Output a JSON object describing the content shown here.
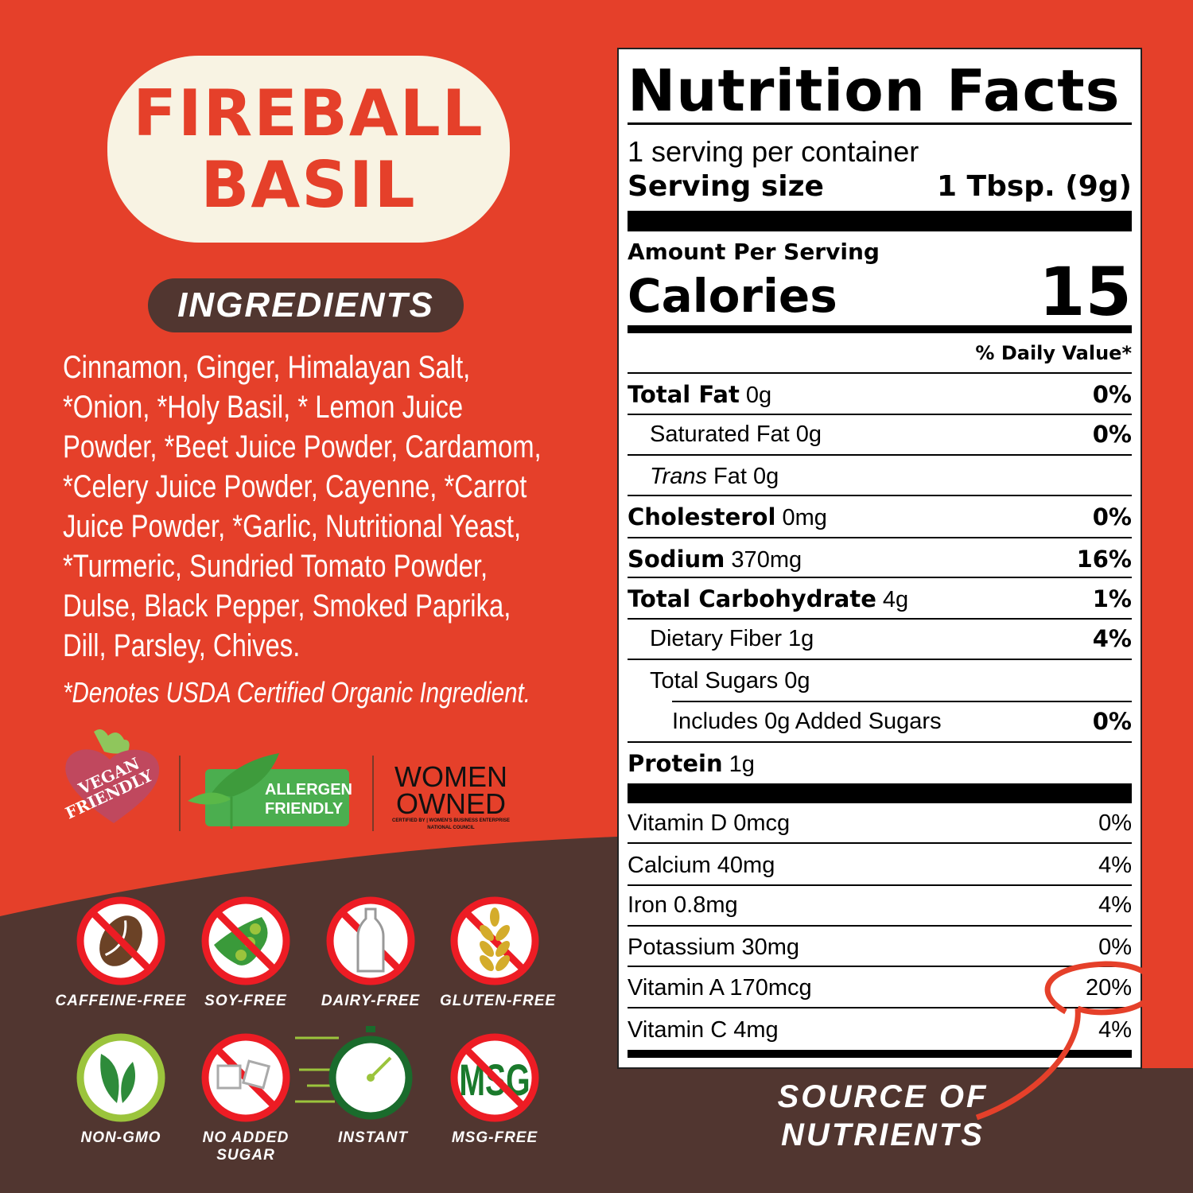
{
  "product": {
    "name_line1": "FIREBALL",
    "name_line2": "BASIL"
  },
  "ingredients": {
    "heading": "INGREDIENTS",
    "lines": [
      "Cinnamon, Ginger, Himalayan Salt,",
      "*Onion, *Holy Basil, * Lemon Juice",
      "Powder, *Beet Juice Powder, Cardamom,",
      "*Celery Juice Powder, Cayenne, *Carrot",
      "Juice Powder, *Garlic, Nutritional Yeast,",
      "*Turmeric, Sundried Tomato Powder,",
      "Dulse, Black Pepper, Smoked Paprika,",
      "Dill, Parsley, Chives."
    ],
    "footnote": "*Denotes USDA Certified Organic Ingredient."
  },
  "certifications": {
    "vegan": "VEGAN FRIENDLY",
    "allergen_line1": "ALLERGEN",
    "allergen_line2": "FRIENDLY",
    "women_line1": "WOMEN",
    "women_line2": "OWNED",
    "women_certified": "CERTIFIED BY | WOMEN'S BUSINESS ENTERPRISE NATIONAL COUNCIL"
  },
  "features": [
    {
      "label": "CAFFEINE-FREE",
      "icon": "coffee-bean-icon"
    },
    {
      "label": "SOY-FREE",
      "icon": "soybean-icon"
    },
    {
      "label": "DAIRY-FREE",
      "icon": "milk-bottle-icon"
    },
    {
      "label": "GLUTEN-FREE",
      "icon": "wheat-icon"
    },
    {
      "label": "NON-GMO",
      "icon": "leaf-icon"
    },
    {
      "label": "NO ADDED SUGAR",
      "icon": "sugar-cube-icon"
    },
    {
      "label": "INSTANT",
      "icon": "stopwatch-icon"
    },
    {
      "label": "MSG-FREE",
      "icon": "msg-icon"
    }
  ],
  "nutrition": {
    "title": "Nutrition Facts",
    "servings": "1 serving per container",
    "serving_size_label": "Serving size",
    "serving_size": "1 Tbsp. (9g)",
    "amount_per_serving": "Amount Per Serving",
    "calories_label": "Calories",
    "calories": "15",
    "dv_header": "% Daily Value*",
    "rows": [
      {
        "bold": "Total Fat",
        "rest": " 0g",
        "dv": "0%"
      },
      {
        "bold": "",
        "rest": "Saturated Fat 0g",
        "dv": "0%"
      },
      {
        "italic": "Trans",
        "rest": " Fat 0g",
        "dv": ""
      },
      {
        "bold": "Cholesterol",
        "rest": " 0mg",
        "dv": "0%"
      },
      {
        "bold": "Sodium",
        "rest": " 370mg",
        "dv": "16%"
      },
      {
        "bold": "Total Carbohydrate",
        "rest": " 4g",
        "dv": "1%"
      },
      {
        "bold": "",
        "rest": "Dietary Fiber 1g",
        "dv": "4%"
      },
      {
        "bold": "",
        "rest": "Total Sugars 0g",
        "dv": ""
      },
      {
        "bold": "",
        "rest": "Includes 0g Added Sugars",
        "dv": "0%"
      },
      {
        "bold": "Protein",
        "rest": " 1g",
        "dv": ""
      }
    ],
    "vitamins": [
      {
        "label": "Vitamin D 0mcg",
        "dv": "0%"
      },
      {
        "label": "Calcium 40mg",
        "dv": "4%"
      },
      {
        "label": "Iron 0.8mg",
        "dv": "4%"
      },
      {
        "label": "Potassium 30mg",
        "dv": "0%"
      },
      {
        "label": "Vitamin A 170mcg",
        "dv": "20%"
      },
      {
        "label": "Vitamin C 4mg",
        "dv": "4%"
      }
    ]
  },
  "callout": {
    "line1": "SOURCE OF",
    "line2": "NUTRIENTS"
  },
  "colors": {
    "background": "#e5402a",
    "brown": "#513630",
    "cream": "#f8f3e3",
    "prohibit_red": "#ed1c24",
    "green": "#2e8b3a"
  }
}
